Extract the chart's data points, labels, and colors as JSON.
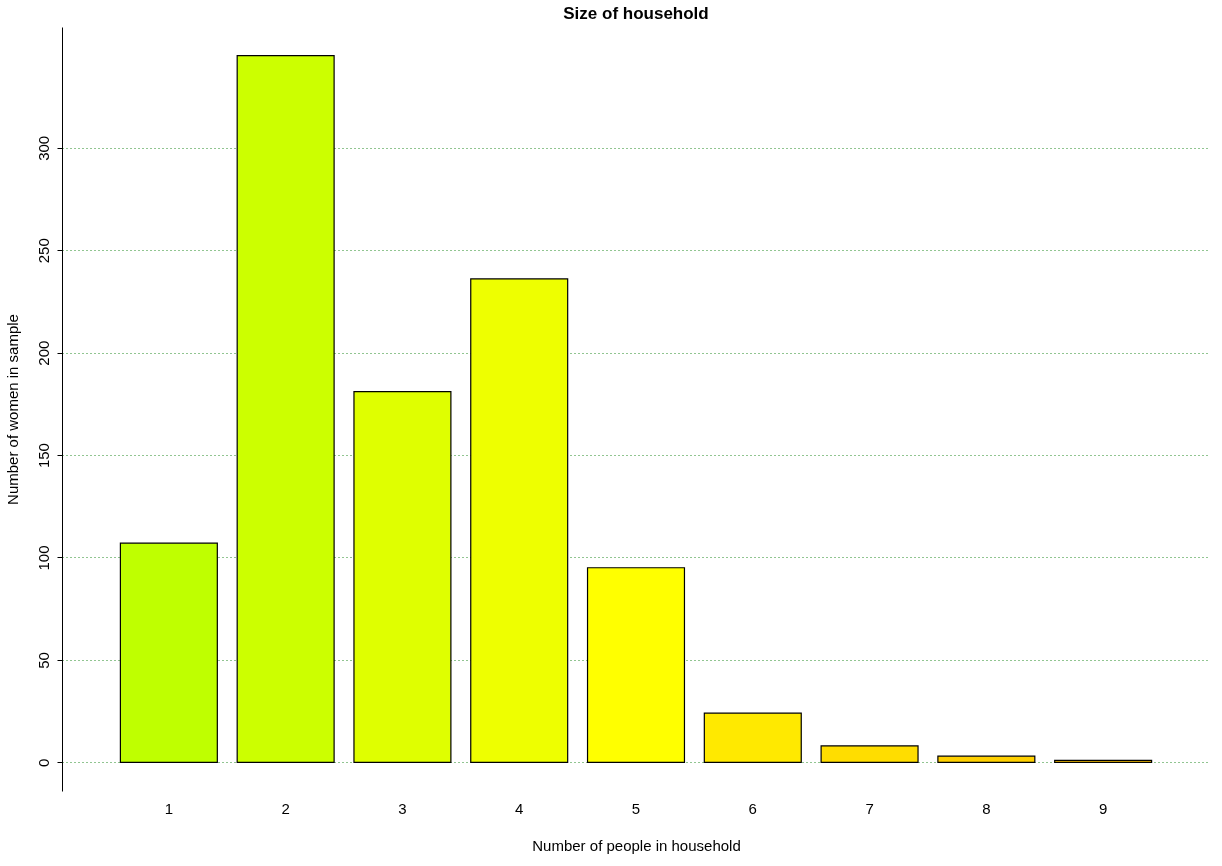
{
  "chart_data": {
    "type": "bar",
    "title": "Size of household",
    "xlabel": "Number of people in household",
    "ylabel": "Number of women in sample",
    "categories": [
      "1",
      "2",
      "3",
      "4",
      "5",
      "6",
      "7",
      "8",
      "9"
    ],
    "values": [
      107,
      345,
      181,
      236,
      95,
      24,
      8,
      3,
      1
    ],
    "colors": [
      "#bfff00",
      "#ccff00",
      "#dfff00",
      "#eeff00",
      "#ffff00",
      "#ffe900",
      "#ffdd00",
      "#ffd000",
      "#ffc400"
    ],
    "ylim": [
      -14,
      359
    ],
    "yticks": [
      0,
      50,
      100,
      150,
      200,
      250,
      300
    ],
    "grid": "y"
  }
}
